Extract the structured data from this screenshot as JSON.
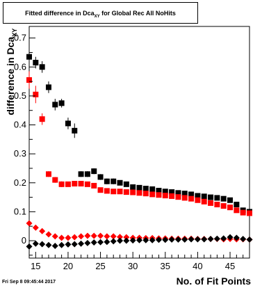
{
  "chart_data": {
    "type": "scatter",
    "title": {
      "main": "Fitted difference in Dca",
      "sub": "XY",
      "rest": " for Global Rec All NoHits"
    },
    "xlabel": "No. of Fit Points",
    "ylabel": {
      "main": "difference in Dca",
      "sub": "XY"
    },
    "xlim": [
      14,
      48
    ],
    "ylim": [
      -0.06,
      0.74
    ],
    "xticks": [
      15,
      20,
      25,
      30,
      35,
      40,
      45
    ],
    "yticks": [
      0,
      0.1,
      0.2,
      0.3,
      0.4,
      0.5,
      0.6,
      0.7
    ],
    "ytick_labels": [
      "0",
      "0.1",
      "0.2",
      "0.3",
      "0.4",
      "0.5",
      "0.6",
      "0.7"
    ],
    "grid": false,
    "series": [
      {
        "marker": "square",
        "color": "#000000",
        "x": [
          14,
          15,
          16,
          17,
          18,
          19,
          20,
          21,
          22,
          23,
          24,
          25,
          26,
          27,
          28,
          29,
          30,
          31,
          32,
          33,
          34,
          35,
          36,
          37,
          38,
          39,
          40,
          41,
          42,
          43,
          44,
          45,
          46,
          47,
          48
        ],
        "y": [
          0.635,
          0.615,
          0.6,
          0.53,
          0.47,
          0.475,
          0.405,
          0.38,
          0.23,
          0.23,
          0.24,
          0.22,
          0.205,
          0.205,
          0.2,
          0.195,
          0.185,
          0.183,
          0.18,
          0.178,
          0.173,
          0.17,
          0.168,
          0.165,
          0.163,
          0.16,
          0.155,
          0.153,
          0.15,
          0.148,
          0.145,
          0.14,
          0.125,
          0.105,
          0.1
        ],
        "err": [
          0.025,
          0.02,
          0.02,
          0.02,
          0.02,
          0.015,
          0.02,
          0.025,
          0.01,
          0.01,
          0.01,
          0.01,
          0.01,
          0.01,
          0.008,
          0.008,
          0.008,
          0.008,
          0.008,
          0.008,
          0.008,
          0.008,
          0.008,
          0.008,
          0.008,
          0.008,
          0.008,
          0.008,
          0.008,
          0.008,
          0.008,
          0.008,
          0.008,
          0.008,
          0.008
        ]
      },
      {
        "marker": "square",
        "color": "#ff0000",
        "x": [
          14,
          15,
          16,
          17,
          18,
          19,
          20,
          21,
          22,
          23,
          24,
          25,
          26,
          27,
          28,
          29,
          30,
          31,
          32,
          33,
          34,
          35,
          36,
          37,
          38,
          39,
          40,
          41,
          42,
          43,
          44,
          45,
          46,
          47,
          48
        ],
        "y": [
          0.555,
          0.505,
          0.42,
          0.23,
          0.21,
          0.195,
          0.195,
          0.197,
          0.197,
          0.195,
          0.19,
          0.175,
          0.172,
          0.17,
          0.17,
          0.168,
          0.167,
          0.165,
          0.163,
          0.16,
          0.158,
          0.156,
          0.154,
          0.151,
          0.148,
          0.145,
          0.14,
          0.135,
          0.13,
          0.125,
          0.12,
          0.115,
          0.105,
          0.097,
          0.095
        ],
        "err": [
          0.03,
          0.03,
          0.02,
          0.01,
          0.01,
          0.01,
          0.008,
          0.008,
          0.008,
          0.008,
          0.008,
          0.008,
          0.008,
          0.008,
          0.008,
          0.008,
          0.008,
          0.008,
          0.008,
          0.008,
          0.008,
          0.008,
          0.008,
          0.008,
          0.008,
          0.008,
          0.008,
          0.008,
          0.008,
          0.008,
          0.008,
          0.008,
          0.008,
          0.008,
          0.008
        ]
      },
      {
        "marker": "diamond",
        "color": "#ff0000",
        "x": [
          14,
          15,
          16,
          17,
          18,
          19,
          20,
          21,
          22,
          23,
          24,
          25,
          26,
          27,
          28,
          29,
          30,
          31,
          32,
          33,
          34,
          35,
          36,
          37,
          38,
          39,
          40,
          41,
          42,
          43,
          44,
          45,
          46,
          47,
          48
        ],
        "y": [
          0.06,
          0.045,
          0.033,
          0.022,
          0.015,
          0.01,
          0.01,
          0.012,
          0.015,
          0.017,
          0.017,
          0.017,
          0.015,
          0.015,
          0.013,
          0.012,
          0.01,
          0.01,
          0.009,
          0.009,
          0.008,
          0.008,
          0.007,
          0.007,
          0.007,
          0.007,
          0.006,
          0.006,
          0.006,
          0.006,
          0.005,
          0.006,
          0.005,
          0.005,
          0.004
        ],
        "err": []
      },
      {
        "marker": "diamond",
        "color": "#000000",
        "x": [
          14,
          15,
          16,
          17,
          18,
          19,
          20,
          21,
          22,
          23,
          24,
          25,
          26,
          27,
          28,
          29,
          30,
          31,
          32,
          33,
          34,
          35,
          36,
          37,
          38,
          39,
          40,
          41,
          42,
          43,
          44,
          45,
          46,
          47,
          48
        ],
        "y": [
          -0.02,
          -0.01,
          -0.012,
          -0.015,
          -0.018,
          -0.015,
          -0.013,
          -0.012,
          -0.01,
          -0.008,
          -0.006,
          -0.005,
          -0.004,
          -0.002,
          0.0,
          0.0,
          0.001,
          0.002,
          0.002,
          0.002,
          0.003,
          0.003,
          0.004,
          0.004,
          0.004,
          0.005,
          0.005,
          0.005,
          0.006,
          0.007,
          0.008,
          0.012,
          0.01,
          0.006,
          0.004
        ],
        "err": []
      }
    ]
  },
  "footer": {
    "date": "Fri Sep  8 09:45:44 2017"
  }
}
